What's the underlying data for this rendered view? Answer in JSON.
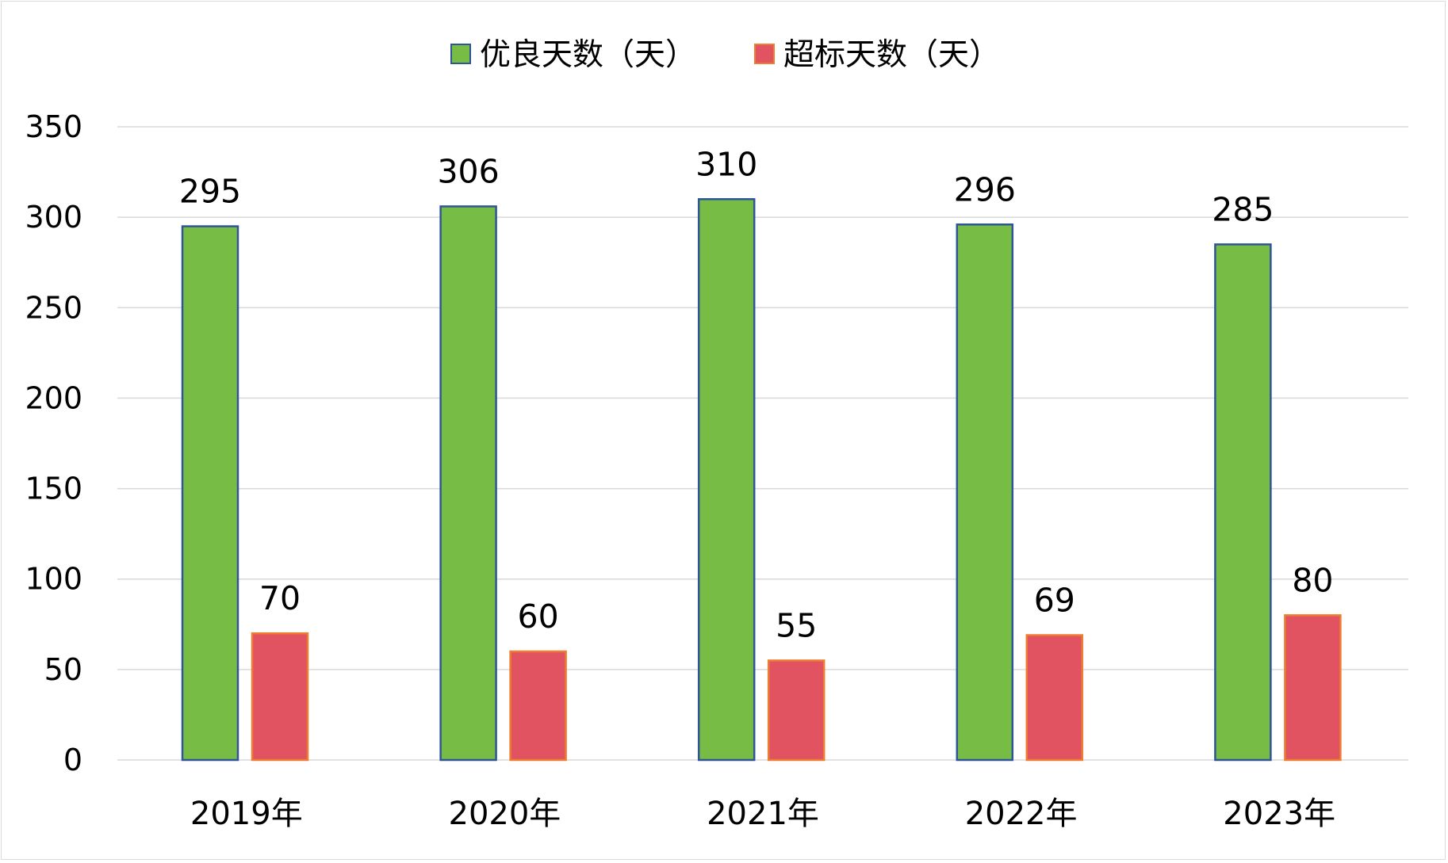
{
  "chart_data": {
    "type": "bar",
    "categories": [
      "2019年",
      "2020年",
      "2021年",
      "2022年",
      "2023年"
    ],
    "series": [
      {
        "name": "优良天数（天）",
        "values": [
          295,
          306,
          310,
          296,
          285
        ],
        "color": "#77BD45",
        "border_color": "#2F5597"
      },
      {
        "name": "超标天数（天）",
        "values": [
          70,
          60,
          55,
          69,
          80
        ],
        "color": "#E25361",
        "border_color": "#ED7D31"
      }
    ],
    "yticks": [
      "0",
      "50",
      "100",
      "150",
      "200",
      "250",
      "300",
      "350"
    ],
    "ylim": [
      0,
      350
    ],
    "grid": true,
    "legend_position": "top-center",
    "data_labels": true
  }
}
